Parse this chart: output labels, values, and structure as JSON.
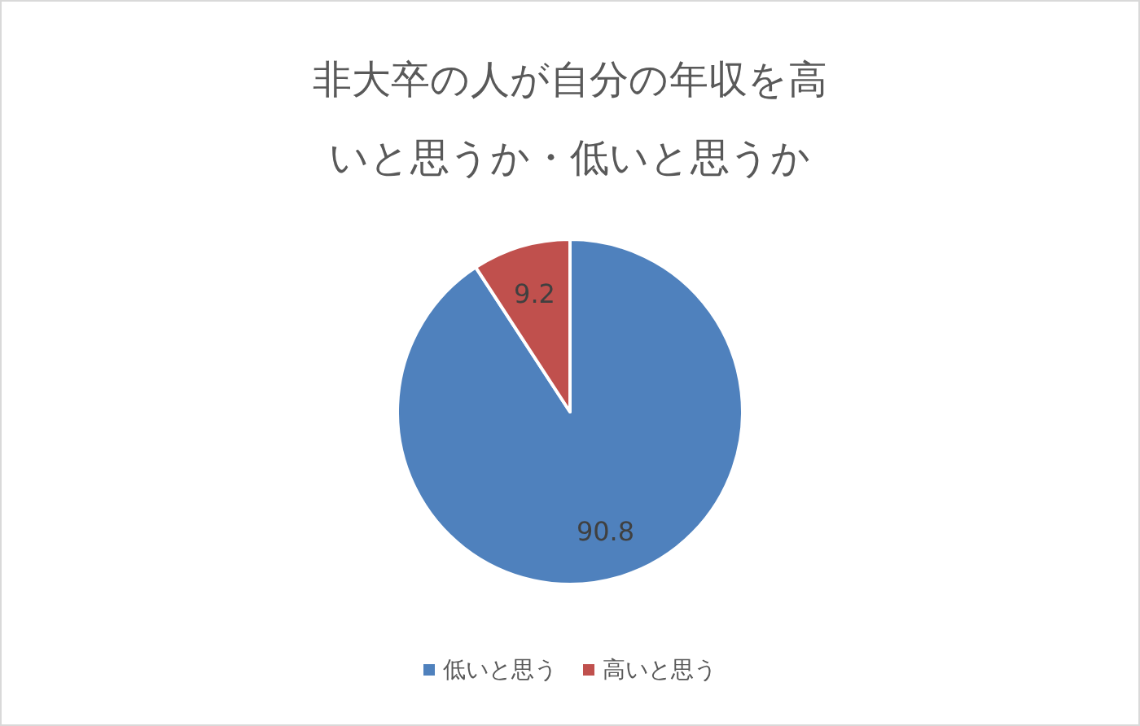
{
  "chart_data": {
    "type": "pie",
    "title": "非大卒の人が自分の年収を高いと思うか・低いと思うか",
    "categories": [
      "低いと思う",
      "高いと思う"
    ],
    "values": [
      90.8,
      9.2
    ],
    "colors": [
      "#4f81bd",
      "#c0504d"
    ],
    "data_labels": true,
    "legend": "bottom"
  }
}
